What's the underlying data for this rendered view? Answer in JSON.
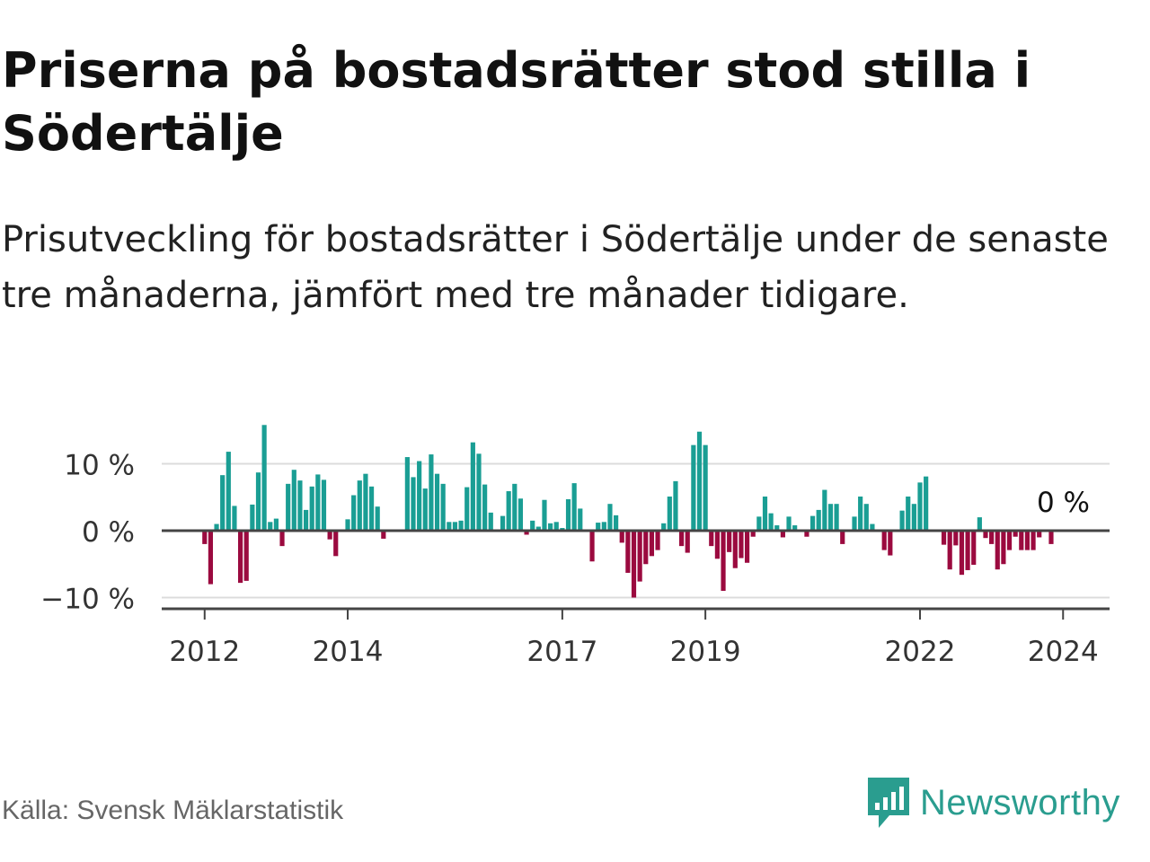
{
  "title": "Priserna på bostadsrätter stod stilla i Södertälje",
  "subtitle": "Prisutveckling för bostadsrätter i Södertälje under de senaste tre månaderna, jämfört med tre månader tidigare.",
  "source": "Källa: Svensk Mäklarstatistik",
  "brand": {
    "name": "Newsworthy",
    "logo_icon": "newsworthy-logo-icon"
  },
  "colors": {
    "positive": "#1a9e94",
    "negative": "#9b0a3f",
    "grid": "#dcdcdc",
    "axis": "#444444",
    "brand": "#2a9d8f"
  },
  "chart_data": {
    "type": "bar",
    "title": "Priserna på bostadsrätter stod stilla i Södertälje",
    "ylabel": "",
    "xlabel": "",
    "ylim": [
      -10.5,
      16
    ],
    "yticks": [
      10,
      0,
      -10
    ],
    "ytick_labels": [
      "10 %",
      "0 %",
      "−10 %"
    ],
    "xticks": [
      2012,
      2014,
      2017,
      2019,
      2022,
      2024
    ],
    "xlim": [
      2011.4,
      2024.65
    ],
    "last_label": "0 %",
    "series_start": 2012.0,
    "step_years": 0.0833333,
    "values": [
      -2,
      -8,
      1,
      8.3,
      11.8,
      3.7,
      -7.8,
      -7.5,
      3.9,
      8.7,
      15.8,
      1.3,
      1.8,
      -2.3,
      7,
      9.1,
      7.5,
      3.1,
      6.6,
      8.4,
      7.6,
      -1.3,
      -3.8,
      0,
      1.7,
      5.3,
      7.5,
      8.5,
      6.6,
      3.6,
      -1.2,
      0,
      0,
      0,
      11,
      8,
      10.4,
      6.3,
      11.4,
      8.5,
      7,
      1.3,
      1.3,
      1.5,
      6.5,
      13.2,
      11.5,
      6.9,
      2.7,
      0,
      2.2,
      5.9,
      7,
      4.8,
      -0.6,
      1.5,
      0.6,
      4.6,
      1.1,
      1.3,
      0.4,
      4.7,
      7.1,
      3.3,
      0,
      -4.6,
      1.2,
      1.3,
      4,
      2.3,
      -1.8,
      -6.3,
      -10,
      -7.6,
      -5,
      -3.8,
      -2.9,
      1.1,
      5.1,
      7.4,
      -2.3,
      -3.3,
      12.8,
      14.8,
      12.8,
      -2.3,
      -4.2,
      -9,
      -3.2,
      -5.6,
      -4.1,
      -4.8,
      -0.9,
      2.1,
      5.1,
      2.6,
      0.8,
      -1,
      2.1,
      0.8,
      0,
      -0.9,
      2.2,
      3.1,
      6.1,
      4,
      4,
      -2,
      0,
      2.1,
      5.1,
      4,
      1,
      0,
      -2.9,
      -3.7,
      0,
      3,
      5.1,
      4,
      7.2,
      8.1,
      0,
      0,
      -2.1,
      -5.8,
      -2.2,
      -6.6,
      -5.9,
      -5.1,
      2,
      -1.1,
      -2,
      -5.8,
      -5,
      -2.9,
      -0.9,
      -2.9,
      -2.9,
      -2.9,
      -1,
      0,
      -2,
      0
    ]
  }
}
